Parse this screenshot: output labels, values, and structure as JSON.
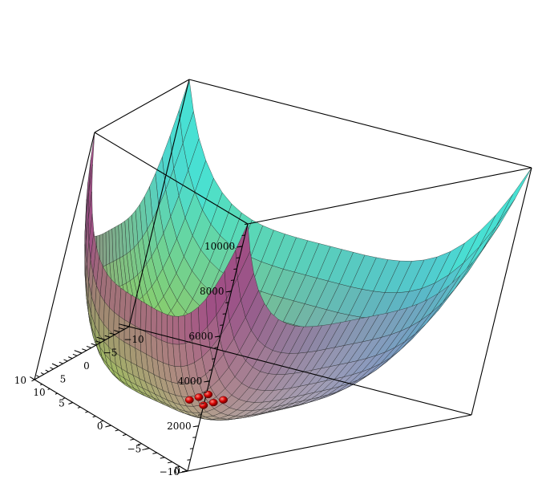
{
  "chart_data": {
    "type": "surface3d",
    "title": "",
    "xlabel": "",
    "ylabel": "",
    "zlabel": "",
    "x_range": [
      -10,
      10
    ],
    "y_range": [
      -10,
      10
    ],
    "z_range": [
      -10,
      11000
    ],
    "x_ticks": [
      10,
      5,
      0,
      -5,
      -10
    ],
    "y_ticks": [
      -10,
      -5,
      0,
      5,
      10
    ],
    "z_ticks": [
      0,
      2000,
      4000,
      6000,
      8000,
      10000
    ],
    "x_tick_labels": [
      "10",
      "5",
      "0",
      "−5",
      "−10"
    ],
    "y_tick_labels": [
      "−10",
      "−5",
      "0",
      "5",
      "10"
    ],
    "z_tick_labels": [
      "0",
      "2000",
      "4000",
      "6000",
      "8000",
      "10000"
    ],
    "surface": {
      "expression_shape": "quartic bowl with flat central valley",
      "grid_lines": 30,
      "colormap": [
        "#7be33c",
        "#d9e84a",
        "#d49a8a",
        "#a04c84",
        "#6b5bd8",
        "#47e3d4"
      ]
    },
    "points": [
      {
        "x": 1.5,
        "y": -1.0,
        "z": 50
      },
      {
        "x": 0.5,
        "y": -1.0,
        "z": 50
      },
      {
        "x": -0.5,
        "y": -1.0,
        "z": 50
      },
      {
        "x": 1.5,
        "y": 0.2,
        "z": 50
      },
      {
        "x": 0.5,
        "y": 0.2,
        "z": 50
      },
      {
        "x": -0.5,
        "y": 0.2,
        "z": 50
      }
    ],
    "point_color": "#d40000"
  }
}
